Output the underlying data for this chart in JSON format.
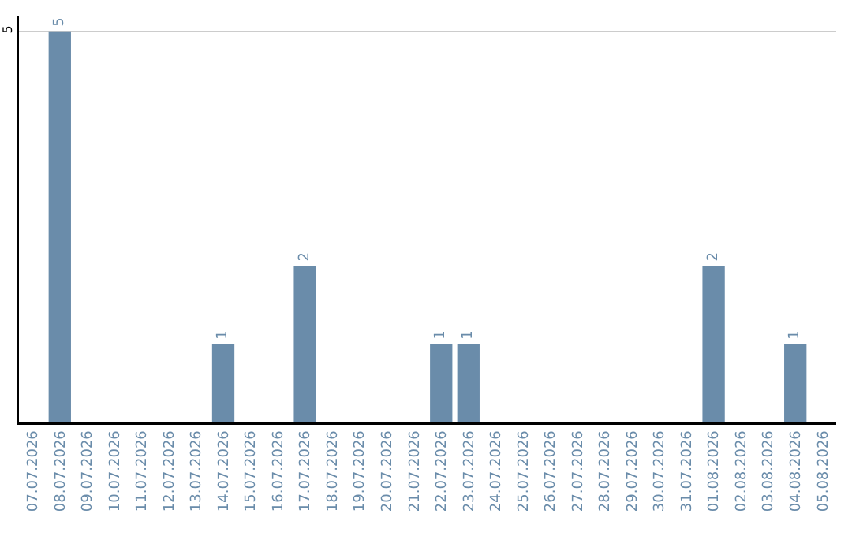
{
  "chart_data": {
    "type": "bar",
    "categories": [
      "07.07.2026",
      "08.07.2026",
      "09.07.2026",
      "10.07.2026",
      "11.07.2026",
      "12.07.2026",
      "13.07.2026",
      "14.07.2026",
      "15.07.2026",
      "16.07.2026",
      "17.07.2026",
      "18.07.2026",
      "19.07.2026",
      "20.07.2026",
      "21.07.2026",
      "22.07.2026",
      "23.07.2026",
      "24.07.2026",
      "25.07.2026",
      "26.07.2026",
      "27.07.2026",
      "28.07.2026",
      "29.07.2026",
      "30.07.2026",
      "31.07.2026",
      "01.08.2026",
      "02.08.2026",
      "03.08.2026",
      "04.08.2026",
      "05.08.2026"
    ],
    "values": [
      0,
      5,
      0,
      0,
      0,
      0,
      0,
      1,
      0,
      0,
      2,
      0,
      0,
      0,
      0,
      1,
      1,
      0,
      0,
      0,
      0,
      0,
      0,
      0,
      0,
      2,
      0,
      0,
      1,
      0
    ],
    "value_labels": [
      null,
      "5",
      null,
      null,
      null,
      null,
      null,
      "1",
      null,
      null,
      "2",
      null,
      null,
      null,
      null,
      "1",
      "1",
      null,
      null,
      null,
      null,
      null,
      null,
      null,
      null,
      "2",
      null,
      null,
      "1",
      null
    ],
    "color": "#6a8caa",
    "ylim": [
      0,
      5.2
    ],
    "yticks": [
      5
    ],
    "grid": "y"
  }
}
